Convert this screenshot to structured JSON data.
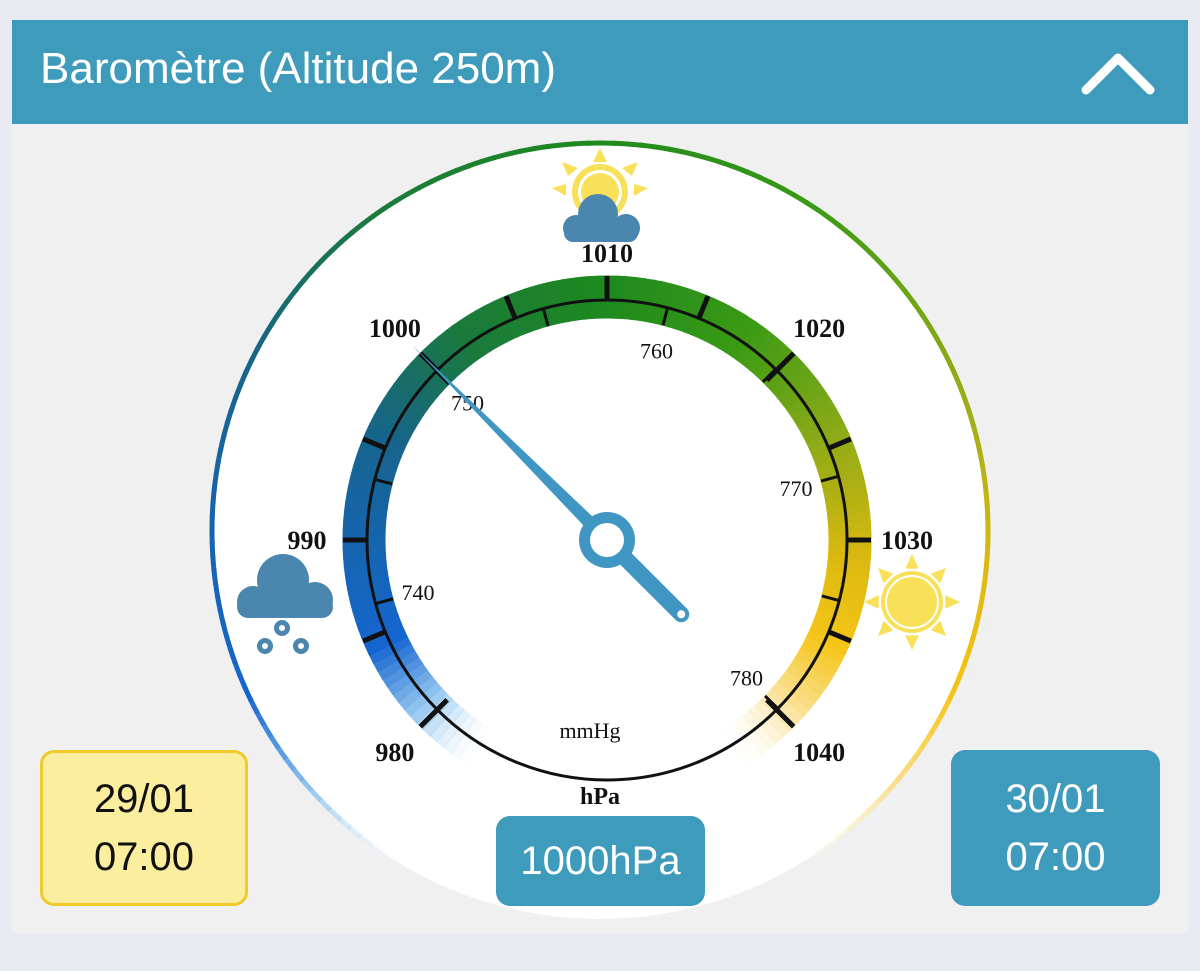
{
  "header": {
    "title": "Baromètre (Altitude 250m)",
    "collapse_icon": "chevron-up-icon"
  },
  "gauge": {
    "value_hpa": 1000,
    "hpa_min": 980,
    "hpa_max": 1040,
    "hpa_labels": [
      "980",
      "990",
      "1000",
      "1010",
      "1020",
      "1030",
      "1040"
    ],
    "mmhg_labels": [
      "740",
      "750",
      "760",
      "770",
      "780"
    ],
    "mmhg_unit": "mmHg",
    "hpa_unit": "hPa",
    "icons": [
      "rain-cloud-icon",
      "partly-cloudy-icon",
      "sun-icon"
    ],
    "colors": {
      "needle": "#3f96c2",
      "low": "#1565d0",
      "mid": "#1e8a1e",
      "high": "#f5c518"
    }
  },
  "reading": {
    "value_label": "1000hPa"
  },
  "start": {
    "date": "29/01",
    "time": "07:00"
  },
  "end": {
    "date": "30/01",
    "time": "07:00"
  }
}
